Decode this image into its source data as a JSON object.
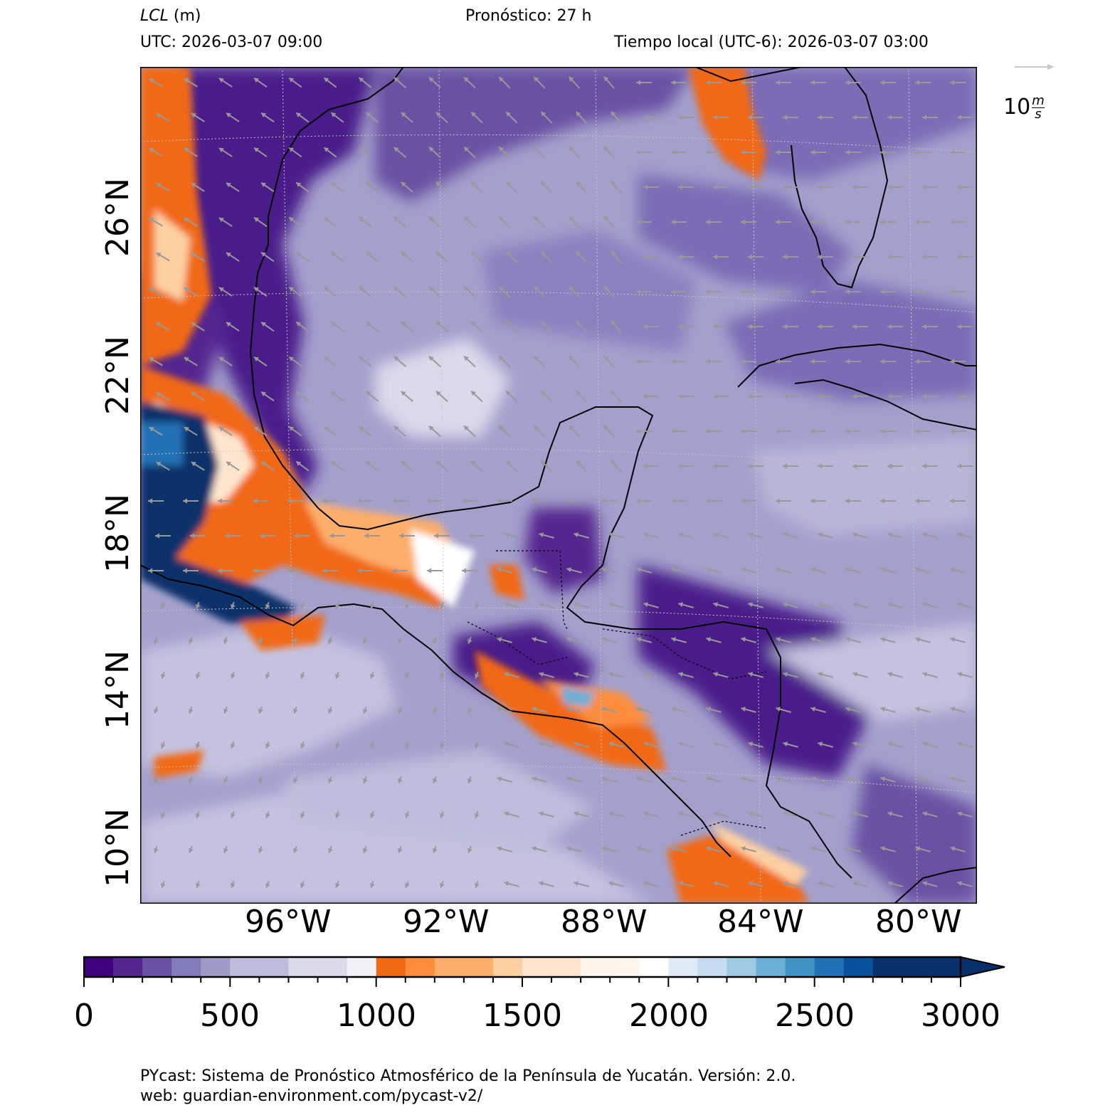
{
  "header": {
    "variable": "LCL",
    "unit": "(m)",
    "forecast": "Pronóstico: 27 h",
    "utc": "UTC:  2026-03-07 09:00",
    "local": "Tiempo local (UTC-6): 2026-03-07 03:00"
  },
  "wind_key": {
    "value": "10",
    "unit_num": "m",
    "unit_den": "s"
  },
  "map": {
    "lat_labels": [
      "26°N",
      "22°N",
      "18°N",
      "14°N",
      "10°N"
    ],
    "lon_labels": [
      "96°W",
      "92°W",
      "88°W",
      "84°W",
      "80°W"
    ],
    "ocean_color": "#9c9ac9",
    "arrow_color": "#999999"
  },
  "colorbar": {
    "ticks": [
      "0",
      "500",
      "1000",
      "1500",
      "2000",
      "2500",
      "3000"
    ],
    "colors": [
      "#3f007d",
      "#54278f",
      "#6a51a3",
      "#807dba",
      "#9e9ac8",
      "#bcbddc",
      "#bcbddc",
      "#dadaeb",
      "#dadaeb",
      "#f2f0f7",
      "#f16913",
      "#fd8d3c",
      "#fdae6b",
      "#fdae6b",
      "#fdd0a2",
      "#fee6ce",
      "#fee6ce",
      "#fff5eb",
      "#fff5eb",
      "#ffffff",
      "#deebf7",
      "#c6dbef",
      "#9ecae1",
      "#6baed6",
      "#4292c6",
      "#2171b5",
      "#08519c",
      "#08306b",
      "#08306b"
    ]
  },
  "footer": {
    "line1": "PYcast: Sistema de Pronóstico Atmosférico de la Península de Yucatán. Versión: 2.0.",
    "line2": "web: guardian-environment.com/pycast-v2/"
  }
}
